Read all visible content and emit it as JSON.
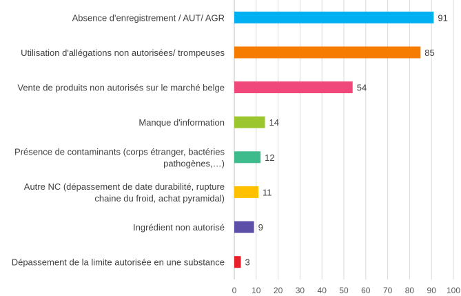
{
  "chart_data": {
    "type": "bar",
    "orientation": "horizontal",
    "categories": [
      "Absence d'enregistrement / AUT/ AGR",
      "Utilisation d'allégations non autorisées/ trompeuses",
      "Vente de produits non autorisés sur le marché belge",
      "Manque d'information",
      "Présence de contaminants (corps étranger, bactéries pathogènes,…)",
      "Autre NC (dépassement de date durabilité, rupture chaine du froid, achat pyramidal)",
      "Ingrédient non autorisé",
      "Dépassement de la limite autorisée en une substance"
    ],
    "category_lines": [
      [
        "Absence d'enregistrement / AUT/ AGR"
      ],
      [
        "Utilisation d'allégations non autorisées/ trompeuses"
      ],
      [
        "Vente de produits non autorisés sur le marché belge"
      ],
      [
        "Manque d'information"
      ],
      [
        "Présence de contaminants (corps étranger, bactéries",
        "pathogènes,…)"
      ],
      [
        "Autre NC (dépassement de date durabilité, rupture",
        "chaine du froid, achat pyramidal)"
      ],
      [
        "Ingrédient non autorisé"
      ],
      [
        "Dépassement de la limite autorisée en une substance"
      ]
    ],
    "values": [
      91,
      85,
      54,
      14,
      12,
      11,
      9,
      3
    ],
    "colors": [
      "#00b0f0",
      "#f57c00",
      "#f0487a",
      "#9bc62d",
      "#3dbb8c",
      "#ffc000",
      "#5b4fa8",
      "#e8202a"
    ],
    "xlim": [
      0,
      100
    ],
    "xticks": [
      0,
      10,
      20,
      30,
      40,
      50,
      60,
      70,
      80,
      90,
      100
    ],
    "title": "",
    "xlabel": "",
    "ylabel": "",
    "grid": "vertical",
    "legend": "none"
  }
}
